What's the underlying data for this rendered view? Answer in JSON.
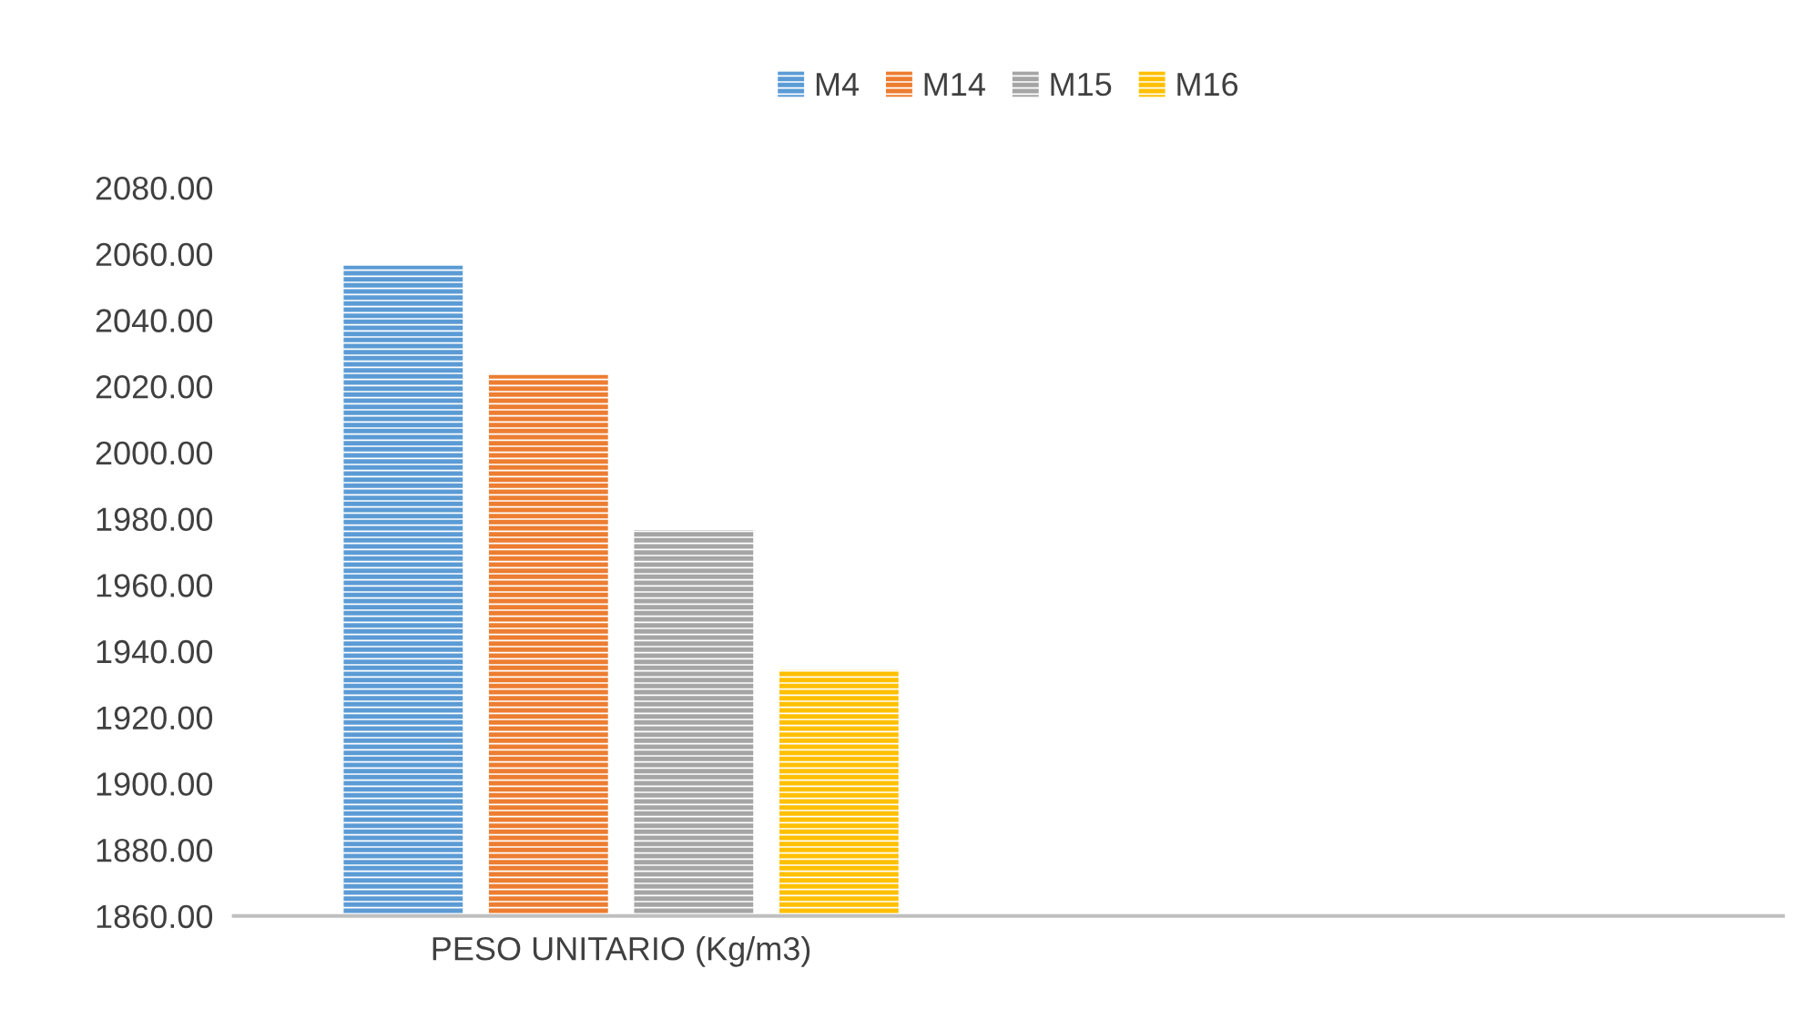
{
  "chart_data": {
    "type": "bar",
    "categories": [
      "PESO UNITARIO (Kg/m3)",
      null
    ],
    "series": [
      {
        "name": "M4",
        "color": "#5b9bd5",
        "values": [
          2056.4,
          null
        ]
      },
      {
        "name": "M14",
        "color": "#ed7d31",
        "values": [
          2023.4,
          null
        ]
      },
      {
        "name": "M15",
        "color": "#a5a5a5",
        "values": [
          1976.6,
          null
        ]
      },
      {
        "name": "M16",
        "color": "#ffc000",
        "values": [
          1934.3,
          null
        ]
      }
    ],
    "ylim": [
      1860,
      2080
    ],
    "yticks": [
      {
        "value": 1860,
        "label": "1860.00"
      },
      {
        "value": 1880,
        "label": "1880.00"
      },
      {
        "value": 1900,
        "label": "1900.00"
      },
      {
        "value": 1920,
        "label": "1920.00"
      },
      {
        "value": 1940,
        "label": "1940.00"
      },
      {
        "value": 1960,
        "label": "1960.00"
      },
      {
        "value": 1980,
        "label": "1980.00"
      },
      {
        "value": 2000,
        "label": "2000.00"
      },
      {
        "value": 2020,
        "label": "2020.00"
      },
      {
        "value": 2040,
        "label": "2040.00"
      },
      {
        "value": 2060,
        "label": "2060.00"
      },
      {
        "value": 2080,
        "label": "2080.00"
      }
    ],
    "grid": false,
    "legend": "top"
  }
}
